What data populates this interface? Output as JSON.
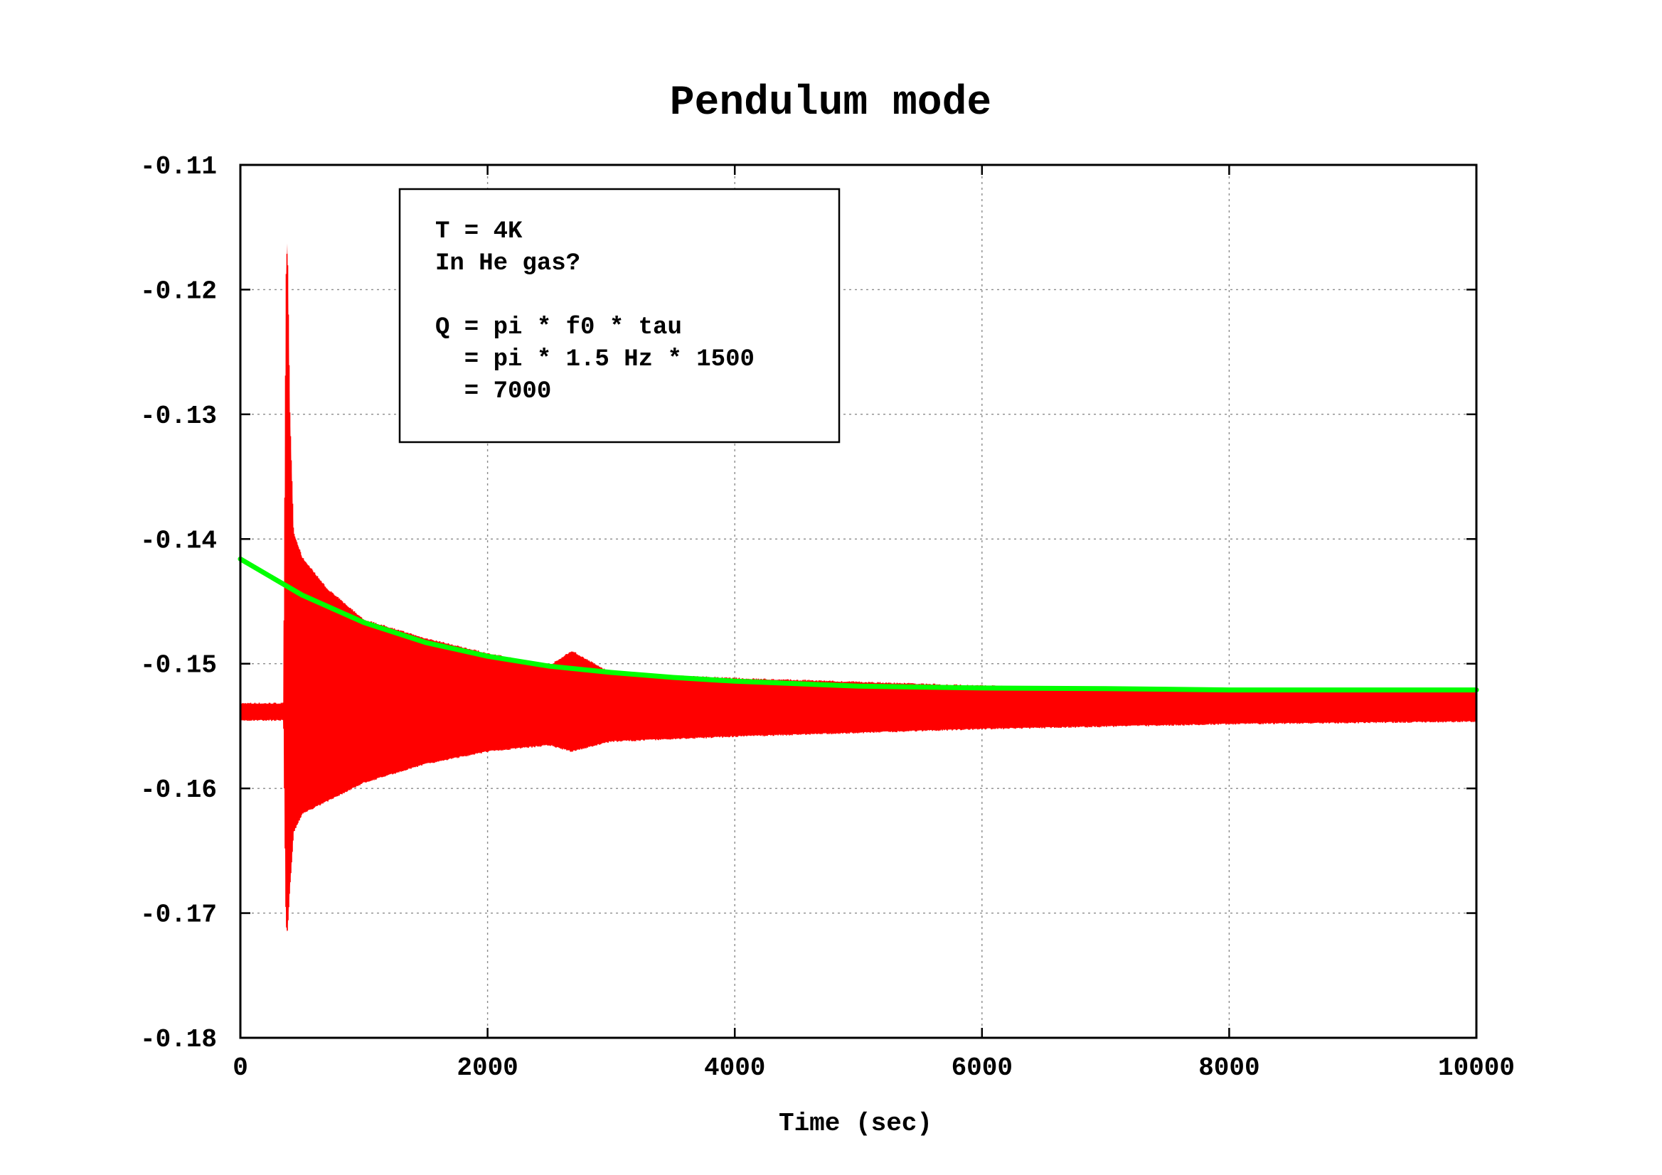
{
  "chart_data": {
    "type": "line",
    "title": "Pendulum mode",
    "xlabel": "Time (sec)",
    "ylabel": "",
    "xlim": [
      0,
      10000
    ],
    "ylim": [
      -0.18,
      -0.11
    ],
    "x_ticks": [
      0,
      2000,
      4000,
      6000,
      8000,
      10000
    ],
    "x_tick_labels": [
      "0",
      "2000",
      "4000",
      "6000",
      "8000",
      "10000"
    ],
    "y_ticks": [
      -0.11,
      -0.12,
      -0.13,
      -0.14,
      -0.15,
      -0.16,
      -0.17,
      -0.18
    ],
    "y_tick_labels": [
      "-0.11",
      "-0.12",
      "-0.13",
      "-0.14",
      "-0.15",
      "-0.16",
      "-0.17",
      "-0.18"
    ],
    "grid": true,
    "legend": "none",
    "annotation": {
      "lines": [
        "T = 4K",
        "In He gas?",
        "",
        "Q = pi * f0 * tau",
        "  = pi * 1.5 Hz * 1500",
        "  = 7000"
      ]
    },
    "series": [
      {
        "kind": "envelope",
        "color": "#ff0000",
        "points": [
          {
            "x": 0,
            "upper": -0.1532,
            "lower": -0.1545
          },
          {
            "x": 350,
            "upper": -0.1532,
            "lower": -0.1545
          },
          {
            "x": 370,
            "upper": -0.119,
            "lower": -0.171
          },
          {
            "x": 380,
            "upper": -0.1163,
            "lower": -0.1715
          },
          {
            "x": 400,
            "upper": -0.13,
            "lower": -0.168
          },
          {
            "x": 430,
            "upper": -0.1395,
            "lower": -0.1635
          },
          {
            "x": 500,
            "upper": -0.1415,
            "lower": -0.162
          },
          {
            "x": 700,
            "upper": -0.144,
            "lower": -0.161
          },
          {
            "x": 1000,
            "upper": -0.1465,
            "lower": -0.1595
          },
          {
            "x": 1500,
            "upper": -0.148,
            "lower": -0.158
          },
          {
            "x": 2000,
            "upper": -0.1492,
            "lower": -0.157
          },
          {
            "x": 2500,
            "upper": -0.1502,
            "lower": -0.1565
          },
          {
            "x": 2680,
            "upper": -0.149,
            "lower": -0.157
          },
          {
            "x": 3000,
            "upper": -0.1508,
            "lower": -0.1562
          },
          {
            "x": 4000,
            "upper": -0.1512,
            "lower": -0.1558
          },
          {
            "x": 5000,
            "upper": -0.1515,
            "lower": -0.1555
          },
          {
            "x": 6000,
            "upper": -0.1518,
            "lower": -0.1552
          },
          {
            "x": 7000,
            "upper": -0.152,
            "lower": -0.155
          },
          {
            "x": 8000,
            "upper": -0.1521,
            "lower": -0.1548
          },
          {
            "x": 9000,
            "upper": -0.1522,
            "lower": -0.1547
          },
          {
            "x": 10000,
            "upper": -0.1522,
            "lower": -0.1546
          }
        ]
      },
      {
        "kind": "line",
        "color": "#00ff00",
        "x": [
          0,
          500,
          1000,
          1500,
          2000,
          2500,
          3000,
          3500,
          4000,
          4500,
          5000,
          6000,
          7000,
          8000,
          9000,
          10000
        ],
        "values": [
          -0.1416,
          -0.1445,
          -0.1467,
          -0.1483,
          -0.1494,
          -0.1502,
          -0.1507,
          -0.1511,
          -0.1514,
          -0.1516,
          -0.1518,
          -0.15195,
          -0.152,
          -0.1521,
          -0.1521,
          -0.1521
        ]
      }
    ]
  }
}
